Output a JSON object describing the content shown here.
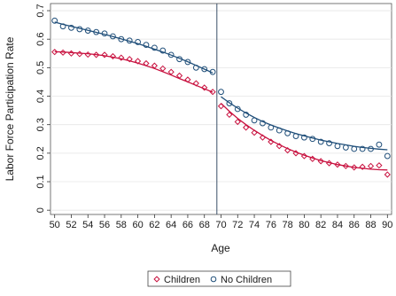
{
  "chart_data": {
    "type": "scatter",
    "title": "",
    "xlabel": "Age",
    "ylabel": "Labor Force Participation Rate",
    "xlim": [
      49.5,
      90.5
    ],
    "ylim": [
      -0.015,
      0.725
    ],
    "x_ticks": [
      50,
      52,
      54,
      56,
      58,
      60,
      62,
      64,
      66,
      68,
      70,
      72,
      74,
      76,
      78,
      80,
      82,
      84,
      86,
      88,
      90
    ],
    "x_tick_labels": [
      "50",
      "52",
      "54",
      "56",
      "58",
      "60",
      "62",
      "64",
      "66",
      "68",
      "70",
      "72",
      "74",
      "76",
      "78",
      "80",
      "82",
      "84",
      "86",
      "88",
      "90"
    ],
    "y_ticks": [
      0,
      0.1,
      0.2,
      0.3,
      0.4,
      0.5,
      0.6,
      0.7
    ],
    "y_tick_labels": [
      "0",
      "0.1",
      "0.2",
      "0.3",
      "0.4",
      "0.5",
      "0.6",
      "0.7"
    ],
    "grid": true,
    "vertical_line": 69.5,
    "legend_position": "bottom",
    "x": [
      50,
      51,
      52,
      53,
      54,
      55,
      56,
      57,
      58,
      59,
      60,
      61,
      62,
      63,
      64,
      65,
      66,
      67,
      68,
      69,
      70,
      71,
      72,
      73,
      74,
      75,
      76,
      77,
      78,
      79,
      80,
      81,
      82,
      83,
      84,
      85,
      86,
      87,
      88,
      89,
      90
    ],
    "series": [
      {
        "name": "Children",
        "color": "#c8103e",
        "marker": "diamond",
        "values": [
          0.555,
          0.553,
          0.55,
          0.548,
          0.546,
          0.545,
          0.545,
          0.54,
          0.535,
          0.53,
          0.523,
          0.515,
          0.507,
          0.497,
          0.485,
          0.472,
          0.458,
          0.445,
          0.43,
          0.415,
          0.365,
          0.335,
          0.31,
          0.29,
          0.272,
          0.255,
          0.24,
          0.225,
          0.21,
          0.2,
          0.19,
          0.18,
          0.172,
          0.165,
          0.16,
          0.155,
          0.15,
          0.152,
          0.155,
          0.157,
          0.125
        ],
        "fit_left": [
          0.556,
          0.555,
          0.553,
          0.551,
          0.549,
          0.546,
          0.542,
          0.537,
          0.531,
          0.524,
          0.516,
          0.507,
          0.497,
          0.486,
          0.474,
          0.462,
          0.45,
          0.438,
          0.426,
          0.414
        ],
        "fit_right": [
          0.375,
          0.347,
          0.322,
          0.3,
          0.28,
          0.262,
          0.245,
          0.23,
          0.216,
          0.204,
          0.193,
          0.183,
          0.174,
          0.167,
          0.16,
          0.155,
          0.15,
          0.147,
          0.144,
          0.142,
          0.141
        ]
      },
      {
        "name": "No Children",
        "color": "#1f4e79",
        "marker": "circle",
        "values": [
          0.665,
          0.645,
          0.64,
          0.635,
          0.63,
          0.625,
          0.62,
          0.61,
          0.6,
          0.595,
          0.59,
          0.58,
          0.57,
          0.56,
          0.545,
          0.53,
          0.52,
          0.5,
          0.495,
          0.485,
          0.415,
          0.375,
          0.355,
          0.335,
          0.315,
          0.305,
          0.29,
          0.28,
          0.27,
          0.26,
          0.255,
          0.25,
          0.24,
          0.235,
          0.225,
          0.22,
          0.215,
          0.215,
          0.215,
          0.23,
          0.19
        ],
        "fit_left": [
          0.66,
          0.652,
          0.645,
          0.638,
          0.631,
          0.624,
          0.617,
          0.609,
          0.601,
          0.593,
          0.584,
          0.575,
          0.565,
          0.555,
          0.544,
          0.533,
          0.521,
          0.508,
          0.495,
          0.482
        ],
        "fit_right": [
          0.398,
          0.377,
          0.358,
          0.341,
          0.325,
          0.311,
          0.299,
          0.288,
          0.278,
          0.269,
          0.261,
          0.253,
          0.246,
          0.24,
          0.234,
          0.229,
          0.224,
          0.22,
          0.217,
          0.214,
          0.212
        ]
      }
    ]
  }
}
